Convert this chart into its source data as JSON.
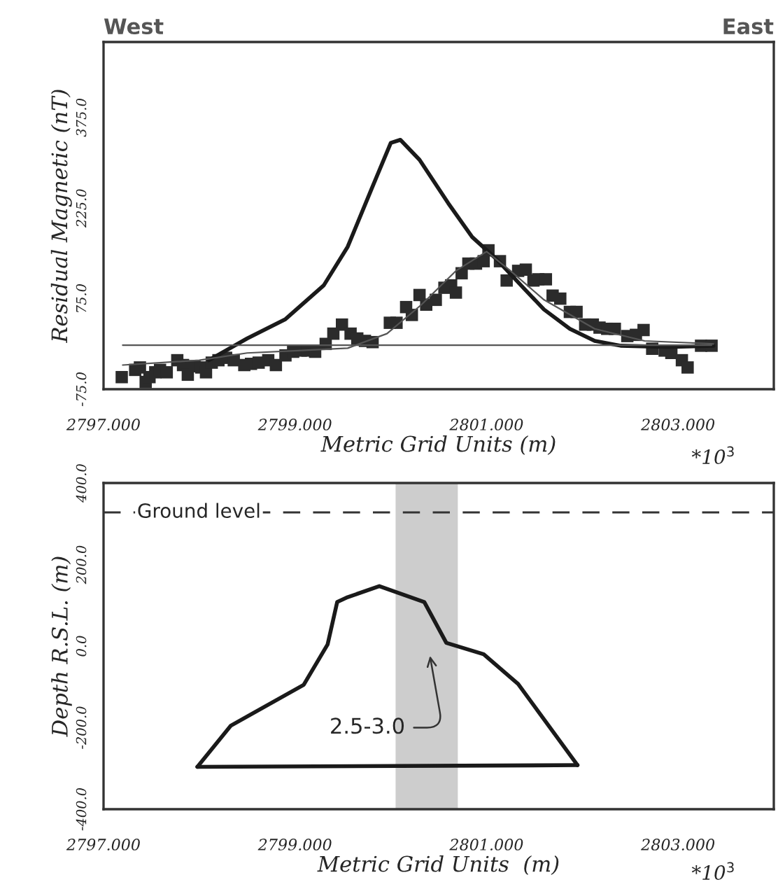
{
  "chart_data": [
    {
      "type": "line",
      "ylabel": "Residual Magnetic (nT)",
      "xlabel": "Metric Grid Units (m)",
      "annotations": [
        "West",
        "East",
        "*10$^{3}$"
      ],
      "xlim": [
        2797,
        2804
      ],
      "ylim": [
        -75,
        500
      ],
      "xticks": [
        {
          "value": 2797,
          "label": "2797.000"
        },
        {
          "value": 2799,
          "label": "2799.000"
        },
        {
          "value": 2801,
          "label": "2801.000"
        },
        {
          "value": 2803,
          "label": "2803.000"
        }
      ],
      "yticks": [
        {
          "value": -75,
          "label": "-75.0"
        },
        {
          "value": 75,
          "label": "75.0"
        },
        {
          "value": 225,
          "label": "225.0"
        },
        {
          "value": 375,
          "label": "375.0"
        }
      ],
      "grid": false,
      "series": [
        {
          "type": "scatter",
          "marker": "square",
          "color": "#2b2b2b",
          "x": [
            2797.19,
            2797.33,
            2797.38,
            2797.44,
            2797.48,
            2797.54,
            2797.59,
            2797.66,
            2797.77,
            2797.83,
            2797.88,
            2797.95,
            2798.02,
            2798.07,
            2798.13,
            2798.2,
            2798.28,
            2798.36,
            2798.47,
            2798.54,
            2798.62,
            2798.72,
            2798.8,
            2798.9,
            2798.98,
            2799.06,
            2799.13,
            2799.21,
            2799.32,
            2799.4,
            2799.49,
            2799.58,
            2799.65,
            2799.73,
            2799.81,
            2799.99,
            2800.06,
            2800.16,
            2800.22,
            2800.3,
            2800.37,
            2800.47,
            2800.56,
            2800.63,
            2800.68,
            2800.74,
            2800.81,
            2800.89,
            2800.97,
            2801.02,
            2801.14,
            2801.21,
            2801.33,
            2801.41,
            2801.49,
            2801.54,
            2801.62,
            2801.69,
            2801.77,
            2801.87,
            2801.94,
            2802.03,
            2802.11,
            2802.18,
            2802.26,
            2802.34,
            2802.47,
            2802.56,
            2802.64,
            2802.73,
            2802.86,
            2802.93,
            2803.04,
            2803.1,
            2803.24,
            2803.35
          ],
          "values": [
            -55,
            -43,
            -39,
            -63,
            -55,
            -47,
            -43,
            -47,
            -27,
            -35,
            -51,
            -37,
            -39,
            -47,
            -31,
            -27,
            -23,
            -27,
            -35,
            -33,
            -31,
            -27,
            -35,
            -19,
            -13,
            -11,
            -11,
            -13,
            0,
            17,
            32,
            17,
            9,
            5,
            3,
            35,
            35,
            61,
            48,
            81,
            65,
            73,
            93,
            97,
            85,
            117,
            133,
            133,
            137,
            155,
            137,
            105,
            121,
            123,
            105,
            107,
            107,
            80,
            75,
            53,
            53,
            32,
            32,
            27,
            25,
            25,
            13,
            15,
            23,
            -8,
            -11,
            -15,
            -27,
            -39,
            -3,
            -3
          ]
        },
        {
          "color": "#1a1a1a",
          "x": [
            2798.1,
            2798.5,
            2798.9,
            2799.3,
            2799.55,
            2799.8,
            2800.0,
            2800.1,
            2800.3,
            2800.6,
            2800.85,
            2801.1,
            2801.36,
            2801.6,
            2801.87,
            2802.13,
            2802.4,
            2802.9,
            2803.37
          ],
          "values": [
            -27,
            9,
            41,
            97,
            161,
            257,
            333,
            338,
            305,
            233,
            177,
            141,
            97,
            57,
            25,
            5,
            -3,
            -5,
            -3
          ]
        },
        {
          "color": "#555555",
          "x": [
            2797.2,
            2798.0,
            2798.5,
            2799.03,
            2799.55,
            2799.96,
            2800.32,
            2800.68,
            2801.0,
            2801.25,
            2801.6,
            2802.13,
            2802.65,
            2803.37
          ],
          "values": [
            -35,
            -27,
            -15,
            -11,
            -7,
            17,
            65,
            121,
            153,
            121,
            73,
            25,
            5,
            0
          ]
        },
        {
          "color": "#555555",
          "x": [
            2797.2,
            2803.35
          ],
          "values": [
            -2,
            -2
          ]
        }
      ]
    },
    {
      "type": "line",
      "ylabel": "Depth R.S.L. (m)",
      "xlabel": "Metric Grid Units  (m)",
      "annotations": [
        "2.5-3.0",
        "*10$^{3}$"
      ],
      "xlim": [
        2797,
        2804
      ],
      "ylim": [
        -400,
        400
      ],
      "xticks": [
        {
          "value": 2797,
          "label": "2797.000"
        },
        {
          "value": 2799,
          "label": "2799.000"
        },
        {
          "value": 2801,
          "label": "2801.000"
        },
        {
          "value": 2803,
          "label": "2803.000"
        }
      ],
      "yticks": [
        {
          "value": -400,
          "label": "-400.0"
        },
        {
          "value": -200,
          "label": "-200.0"
        },
        {
          "value": 0,
          "label": "0.0"
        },
        {
          "value": 200,
          "label": "200.0"
        },
        {
          "value": 400,
          "label": "400.0"
        }
      ],
      "grid": false,
      "ref_lines": [
        {
          "axis": "y",
          "value": 328,
          "label": "Ground level",
          "line_style": "dashed",
          "color": "#333333"
        }
      ],
      "bands": [
        {
          "axis": "x",
          "from": 2800.05,
          "to": 2800.7,
          "color": "#cdcdcd"
        }
      ],
      "series": [
        {
          "color": "#1a1a1a",
          "x": [
            2797.98,
            2798.33,
            2799.09,
            2799.34,
            2799.44,
            2799.55,
            2799.88,
            2800.35,
            2800.58,
            2800.97,
            2801.33,
            2801.95
          ],
          "values": [
            -296,
            -195,
            -95,
            4,
            108,
            120,
            147,
            108,
            8,
            -20,
            -93,
            -292
          ]
        },
        {
          "color": "#1a1a1a",
          "x": [
            2797.98,
            2801.95
          ],
          "values": [
            -296,
            -292
          ]
        }
      ]
    }
  ]
}
